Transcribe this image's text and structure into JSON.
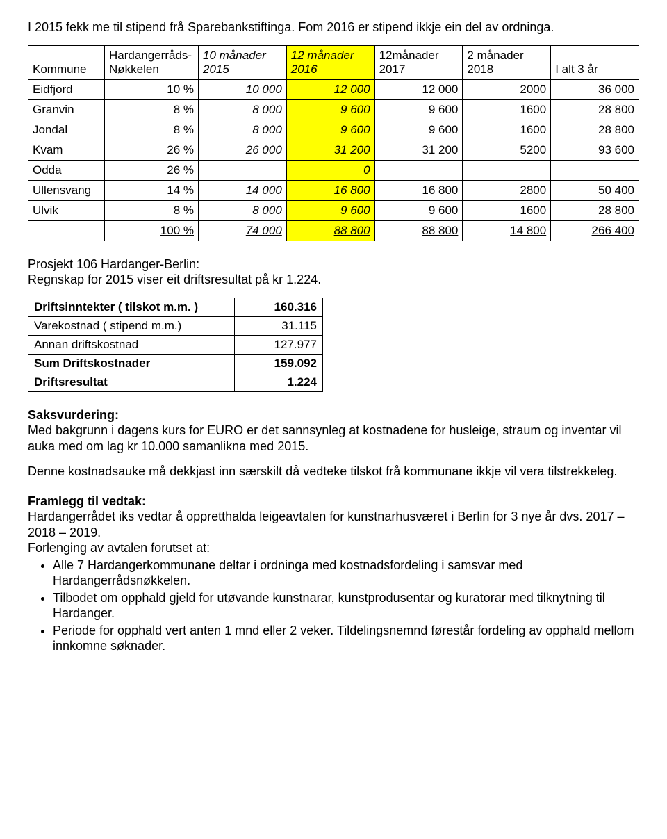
{
  "intro": "I 2015 fekk me til stipend frå Sparebankstiftinga. Fom 2016 er stipend ikkje ein del av ordninga.",
  "table1": {
    "headers": [
      "Kommune",
      "Hardangerråds-Nøkkelen",
      "10 månader 2015",
      "12 månader 2016",
      "12månader 2017",
      "2 månader 2018",
      "I alt 3 år"
    ],
    "rows": [
      {
        "c": [
          "Eidfjord",
          "10 %",
          "10 000",
          "12 000",
          "12 000",
          "2000",
          "36 000"
        ]
      },
      {
        "c": [
          "Granvin",
          "8 %",
          "8 000",
          "9 600",
          "9 600",
          "1600",
          "28 800"
        ]
      },
      {
        "c": [
          "Jondal",
          "8 %",
          "8 000",
          "9 600",
          "9 600",
          "1600",
          "28 800"
        ]
      },
      {
        "c": [
          "Kvam",
          "26 %",
          "26 000",
          "31 200",
          "31 200",
          "5200",
          "93 600"
        ]
      },
      {
        "c": [
          "Odda",
          "26 %",
          "",
          "0",
          "",
          "",
          ""
        ]
      },
      {
        "c": [
          "Ullensvang",
          "14 %",
          "14 000",
          "16 800",
          "16 800",
          "2800",
          "50 400"
        ]
      },
      {
        "c": [
          "Ulvik",
          "8 %",
          "8 000",
          "9 600",
          "9 600",
          "1600",
          "28 800"
        ],
        "ul": true
      },
      {
        "c": [
          "",
          "100 %",
          "74 000",
          "88 800",
          "88 800",
          "14 800",
          "266 400"
        ],
        "ul": true
      }
    ]
  },
  "prosjekt_h": "Prosjekt 106 Hardanger-Berlin:",
  "prosjekt_t": "Regnskap for 2015 viser eit driftsresultat på kr 1.224.",
  "table2": {
    "rows": [
      {
        "l": "Driftsinntekter ( tilskot m.m. )",
        "v": "160.316",
        "b": true
      },
      {
        "l": "Varekostnad ( stipend m.m.)",
        "v": "31.115"
      },
      {
        "l": "Annan driftskostnad",
        "v": "127.977"
      },
      {
        "l": "Sum Driftskostnader",
        "v": "159.092",
        "b": true
      },
      {
        "l": "Driftsresultat",
        "v": "1.224",
        "b": true
      }
    ]
  },
  "saks_h": "Saksvurdering:",
  "saks_p1": "Med bakgrunn i dagens kurs for EURO er det sannsynleg at kostnadene for husleige, straum og inventar vil auka med om lag kr 10.000 samanlikna med 2015.",
  "saks_p2": "Denne kostnadsauke må dekkjast inn særskilt då vedteke tilskot frå kommunane ikkje vil vera tilstrekkeleg.",
  "fram_h": "Framlegg til vedtak:",
  "fram_p1": "Hardangerrådet iks vedtar å oppretthalda leigeavtalen for kunstnarhusværet i Berlin for 3 nye år dvs. 2017 – 2018 – 2019.",
  "fram_p2": "Forlenging av avtalen forutset at:",
  "bullets": [
    "Alle 7 Hardangerkommunane deltar i ordninga med kostnadsfordeling i samsvar med Hardangerrådsnøkkelen.",
    "Tilbodet om opphald gjeld for utøvande kunstnarar, kunstprodusentar og kuratorar med tilknytning til Hardanger.",
    "Periode for opphald vert anten 1 mnd eller 2 veker. Tildelingsnemnd førestår fordeling av opphald mellom innkomne søknader."
  ]
}
